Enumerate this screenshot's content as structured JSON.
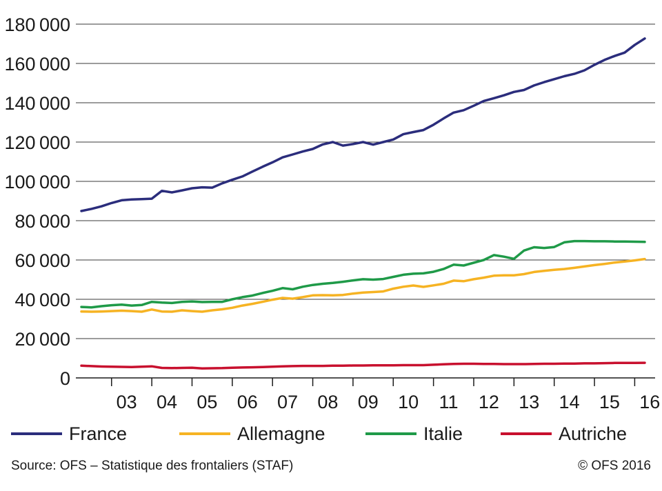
{
  "chart_data": {
    "type": "line",
    "title": "",
    "xlabel": "",
    "ylabel": "",
    "ylim": [
      0,
      180000
    ],
    "y_ticks": [
      "180000",
      "160000",
      "140000",
      "120000",
      "100000",
      "80000",
      "60000",
      "40000",
      "20000",
      "0"
    ],
    "x_ticks": [
      "03",
      "04",
      "05",
      "06",
      "07",
      "08",
      "09",
      "10",
      "11",
      "12",
      "13",
      "14",
      "15",
      "16"
    ],
    "x_domain": [
      "2002-Q2",
      "2016-Q2"
    ],
    "grid": true,
    "legend_position": "bottom",
    "x": [
      "2002-Q2",
      "2002-Q3",
      "2002-Q4",
      "2003-Q1",
      "2003-Q2",
      "2003-Q3",
      "2003-Q4",
      "2004-Q1",
      "2004-Q2",
      "2004-Q3",
      "2004-Q4",
      "2005-Q1",
      "2005-Q2",
      "2005-Q3",
      "2005-Q4",
      "2006-Q1",
      "2006-Q2",
      "2006-Q3",
      "2006-Q4",
      "2007-Q1",
      "2007-Q2",
      "2007-Q3",
      "2007-Q4",
      "2008-Q1",
      "2008-Q2",
      "2008-Q3",
      "2008-Q4",
      "2009-Q1",
      "2009-Q2",
      "2009-Q3",
      "2009-Q4",
      "2010-Q1",
      "2010-Q2",
      "2010-Q3",
      "2010-Q4",
      "2011-Q1",
      "2011-Q2",
      "2011-Q3",
      "2011-Q4",
      "2012-Q1",
      "2012-Q2",
      "2012-Q3",
      "2012-Q4",
      "2013-Q1",
      "2013-Q2",
      "2013-Q3",
      "2013-Q4",
      "2014-Q1",
      "2014-Q2",
      "2014-Q3",
      "2014-Q4",
      "2015-Q1",
      "2015-Q2",
      "2015-Q3",
      "2015-Q4",
      "2016-Q1",
      "2016-Q2"
    ],
    "series": [
      {
        "name": "France",
        "color": "#2b2d7c",
        "values": [
          84900,
          86000,
          87300,
          89000,
          90400,
          90800,
          91000,
          91200,
          95200,
          94400,
          95400,
          96500,
          97000,
          96800,
          99000,
          100800,
          102500,
          105000,
          107400,
          109700,
          112200,
          113700,
          115200,
          116500,
          118800,
          120000,
          118200,
          119000,
          120000,
          118700,
          120000,
          121300,
          124000,
          125100,
          126100,
          128800,
          132000,
          135000,
          136200,
          138500,
          140900,
          142300,
          143800,
          145500,
          146500,
          148800,
          150500,
          152000,
          153500,
          154700,
          156500,
          159300,
          161800,
          163800,
          165500,
          169400,
          172700
        ]
      },
      {
        "name": "Allemagne",
        "color": "#f6b323",
        "values": [
          33800,
          33700,
          33800,
          34000,
          34200,
          34000,
          33700,
          34800,
          33800,
          33700,
          34400,
          34000,
          33700,
          34400,
          34900,
          35700,
          36800,
          37700,
          38700,
          39800,
          40700,
          40300,
          41100,
          42000,
          42100,
          42000,
          42200,
          42900,
          43400,
          43700,
          44000,
          45400,
          46400,
          47000,
          46300,
          47100,
          47900,
          49500,
          49200,
          50200,
          51000,
          52000,
          52200,
          52200,
          52800,
          53900,
          54500,
          55000,
          55400,
          56000,
          56700,
          57400,
          58000,
          58700,
          59200,
          59800,
          60500
        ]
      },
      {
        "name": "Italie",
        "color": "#1f9a48",
        "values": [
          36100,
          35900,
          36500,
          37000,
          37300,
          36800,
          37100,
          38700,
          38300,
          38100,
          38700,
          38900,
          38600,
          38700,
          38700,
          40000,
          41100,
          41900,
          43200,
          44300,
          45700,
          45100,
          46400,
          47300,
          47900,
          48300,
          48900,
          49600,
          50200,
          50000,
          50300,
          51400,
          52500,
          53000,
          53200,
          54000,
          55400,
          57600,
          57200,
          58600,
          60000,
          62500,
          61700,
          60600,
          64800,
          66500,
          66100,
          66600,
          69000,
          69600,
          69600,
          69500,
          69500,
          69400,
          69400,
          69300,
          69200
        ]
      },
      {
        "name": "Autriche",
        "color": "#c8102e",
        "values": [
          6200,
          6000,
          5800,
          5700,
          5600,
          5500,
          5700,
          5900,
          5100,
          5000,
          5100,
          5200,
          4800,
          4900,
          5000,
          5200,
          5300,
          5400,
          5500,
          5700,
          5900,
          6000,
          6100,
          6100,
          6100,
          6200,
          6200,
          6300,
          6300,
          6400,
          6400,
          6400,
          6500,
          6500,
          6500,
          6700,
          6900,
          7100,
          7200,
          7200,
          7100,
          7100,
          7000,
          7000,
          7000,
          7100,
          7200,
          7200,
          7300,
          7300,
          7400,
          7400,
          7500,
          7600,
          7600,
          7600,
          7700
        ]
      }
    ]
  },
  "footer": {
    "source": "Source: OFS – Statistique des frontaliers (STAF)",
    "copyright": "© OFS 2016"
  }
}
